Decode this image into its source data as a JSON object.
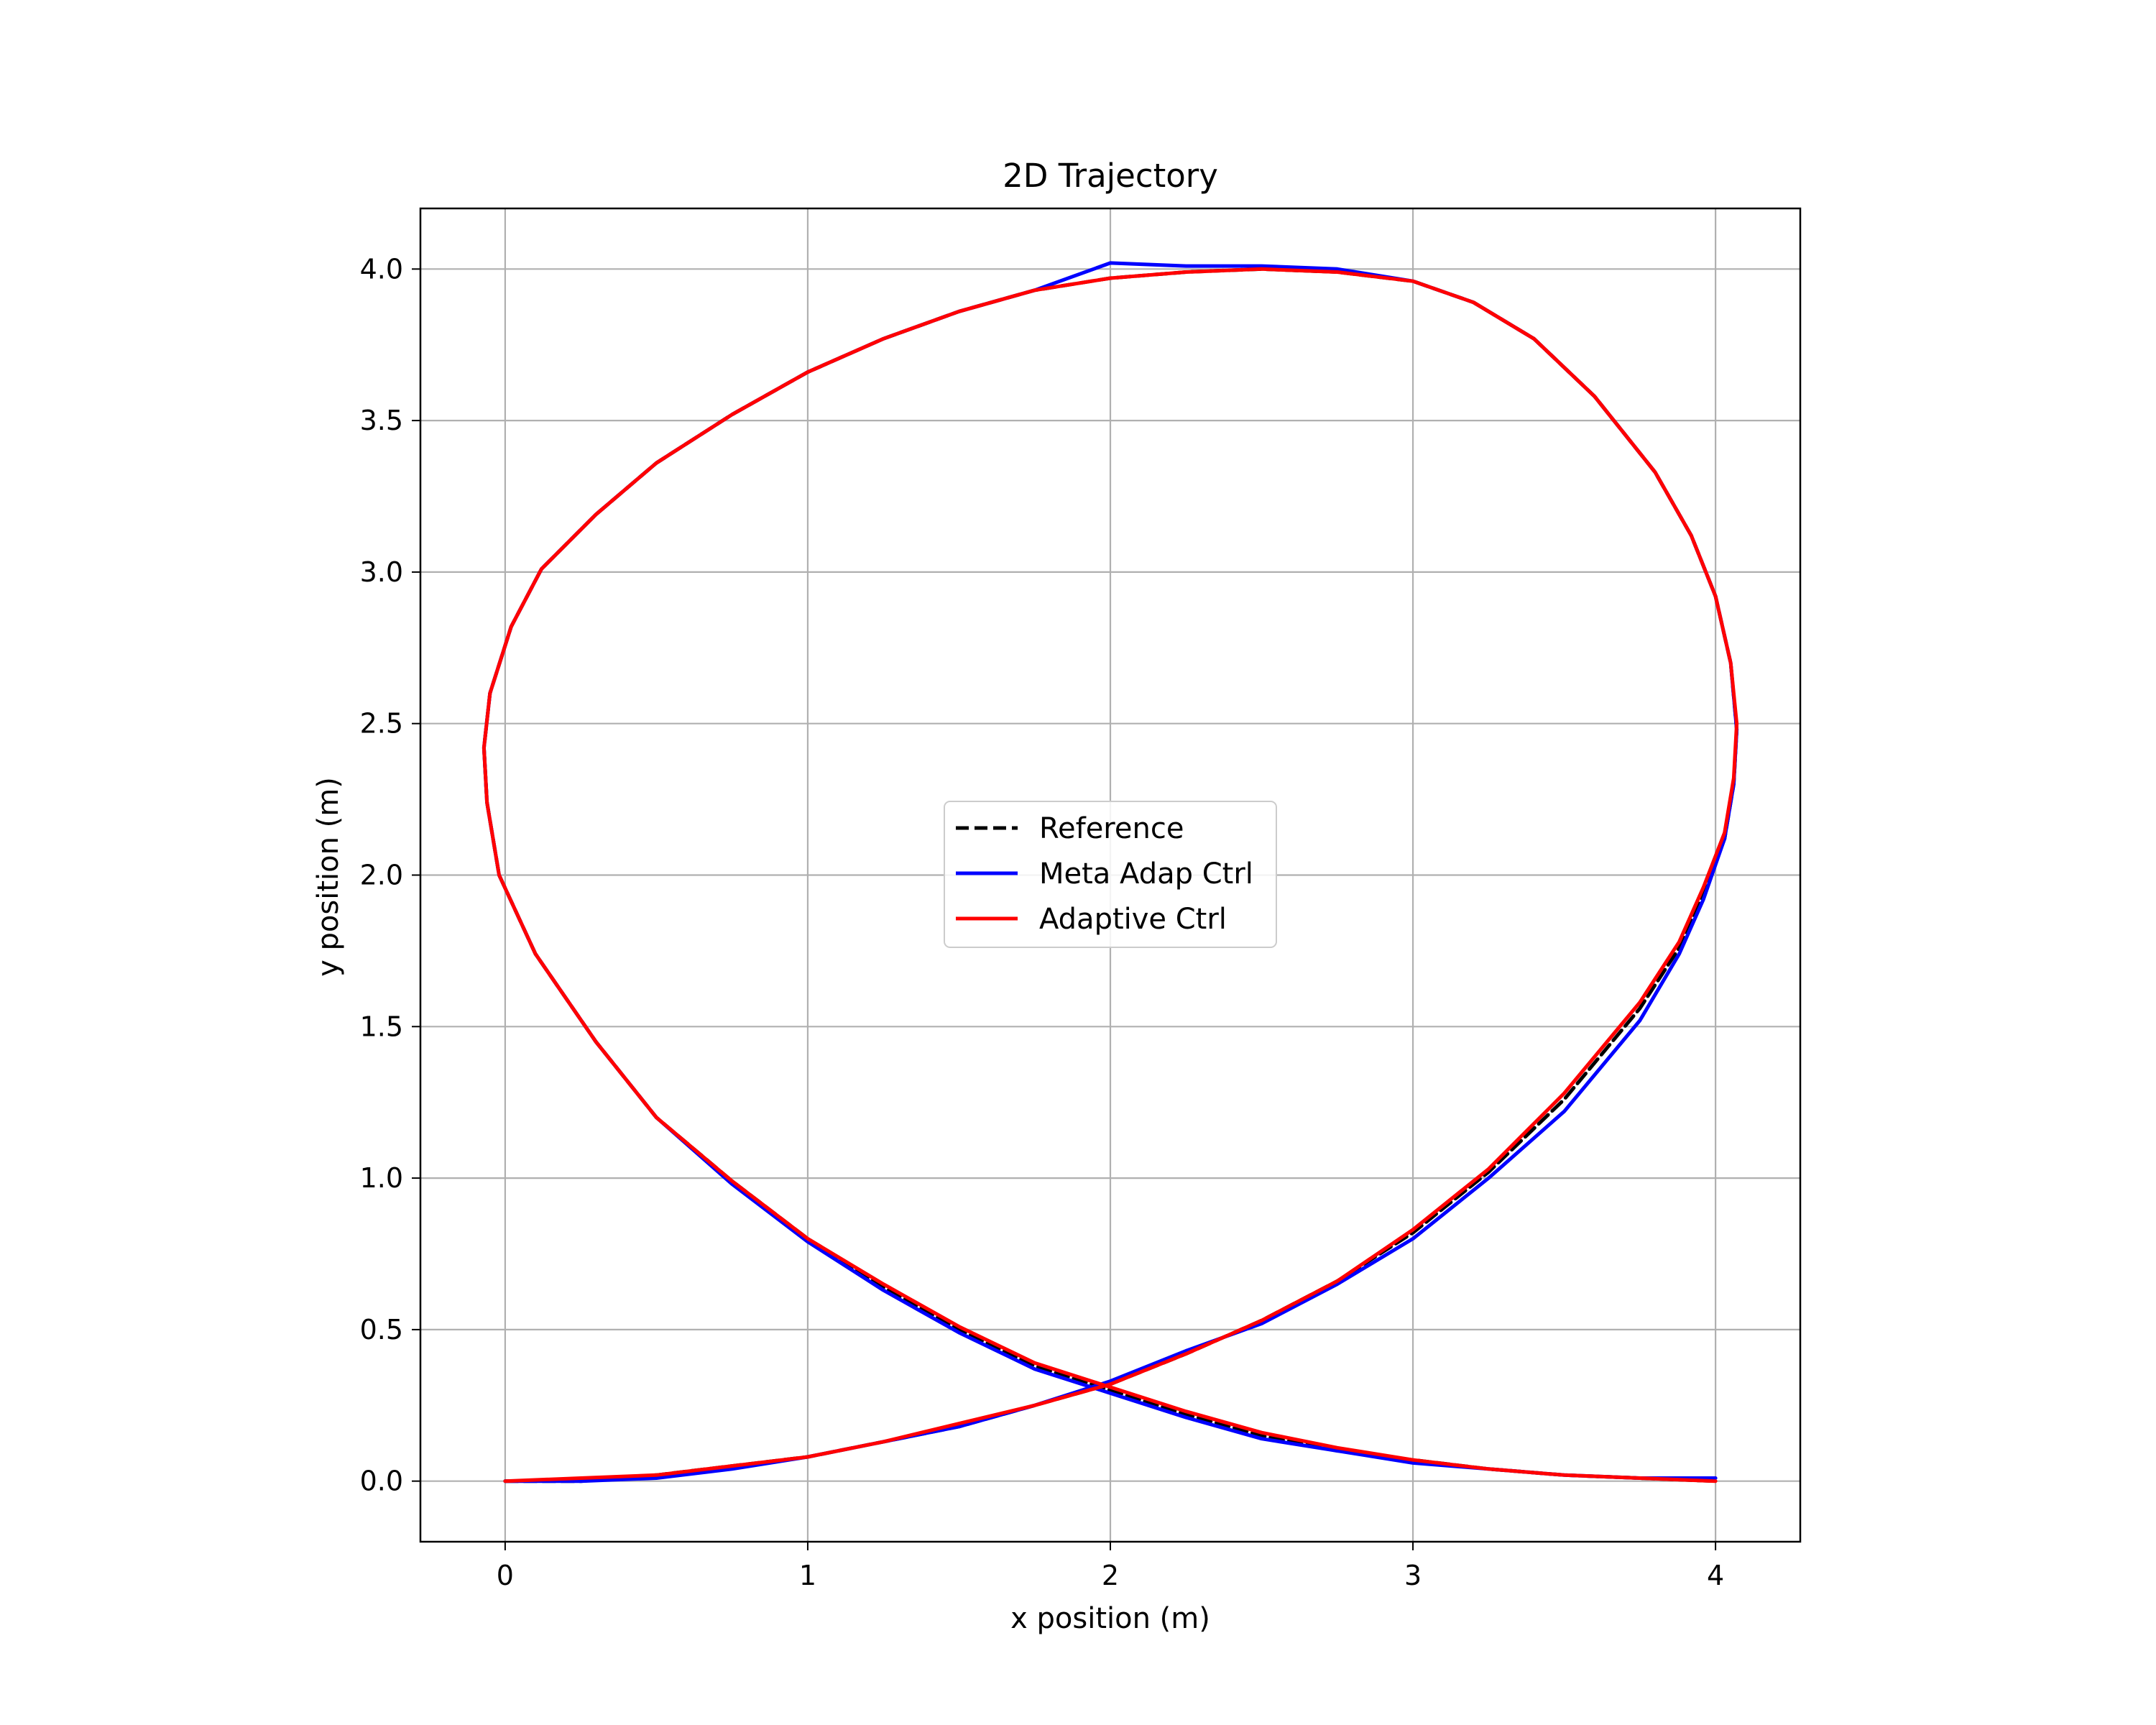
{
  "chart_data": {
    "type": "line",
    "title": "2D Trajectory",
    "xlabel": "x position (m)",
    "ylabel": "y position (m)",
    "xlim": [
      -0.28,
      4.28
    ],
    "ylim": [
      -0.2,
      4.2
    ],
    "xticks": [
      0,
      1,
      2,
      3,
      4
    ],
    "xtick_labels": [
      "0",
      "1",
      "2",
      "3",
      "4"
    ],
    "yticks": [
      0.0,
      0.5,
      1.0,
      1.5,
      2.0,
      2.5,
      3.0,
      3.5,
      4.0
    ],
    "ytick_labels": [
      "0.0",
      "0.5",
      "1.0",
      "1.5",
      "2.0",
      "2.5",
      "3.0",
      "3.5",
      "4.0"
    ],
    "grid": true,
    "legend_position": "center",
    "series": [
      {
        "name": "Reference",
        "color": "#000000",
        "style": "dashed",
        "x": [
          0.0,
          0.25,
          0.5,
          0.75,
          1.0,
          1.25,
          1.5,
          1.75,
          2.0,
          2.25,
          2.5,
          2.75,
          3.0,
          3.25,
          3.5,
          3.75,
          3.88,
          3.96,
          4.03,
          4.06,
          4.07,
          4.05,
          4.0,
          3.92,
          3.8,
          3.6,
          3.4,
          3.2,
          3.0,
          2.75,
          2.5,
          2.25,
          2.0,
          1.75,
          1.5,
          1.25,
          1.0,
          0.75,
          0.5,
          0.3,
          0.12,
          0.02,
          -0.05,
          -0.07,
          -0.06,
          -0.02,
          0.1,
          0.3,
          0.5,
          0.75,
          1.0,
          1.25,
          1.5,
          1.75,
          2.0,
          2.25,
          2.5,
          2.75,
          3.0,
          3.25,
          3.5,
          3.75,
          4.0
        ],
        "y": [
          0.0,
          0.0,
          0.02,
          0.05,
          0.08,
          0.13,
          0.18,
          0.25,
          0.32,
          0.42,
          0.53,
          0.66,
          0.82,
          1.02,
          1.26,
          1.56,
          1.76,
          1.94,
          2.12,
          2.3,
          2.48,
          2.7,
          2.92,
          3.12,
          3.33,
          3.58,
          3.77,
          3.89,
          3.96,
          3.99,
          4.0,
          3.99,
          3.97,
          3.93,
          3.86,
          3.77,
          3.66,
          3.52,
          3.36,
          3.19,
          3.01,
          2.82,
          2.6,
          2.42,
          2.24,
          2.0,
          1.74,
          1.45,
          1.2,
          0.99,
          0.8,
          0.64,
          0.5,
          0.38,
          0.3,
          0.22,
          0.15,
          0.1,
          0.07,
          0.04,
          0.02,
          0.01,
          0.0
        ]
      },
      {
        "name": "Meta Adap Ctrl",
        "color": "#0000ff",
        "style": "solid",
        "x": [
          0.0,
          0.25,
          0.5,
          0.75,
          1.0,
          1.25,
          1.5,
          1.75,
          2.0,
          2.25,
          2.5,
          2.75,
          3.0,
          3.25,
          3.5,
          3.75,
          3.88,
          3.96,
          4.03,
          4.06,
          4.07,
          4.05,
          4.0,
          3.92,
          3.8,
          3.6,
          3.4,
          3.2,
          3.0,
          2.75,
          2.5,
          2.25,
          2.0,
          1.75,
          1.5,
          1.25,
          1.0,
          0.75,
          0.5,
          0.3,
          0.12,
          0.02,
          -0.05,
          -0.07,
          -0.06,
          -0.02,
          0.1,
          0.3,
          0.5,
          0.75,
          1.0,
          1.25,
          1.5,
          1.75,
          2.0,
          2.25,
          2.5,
          2.75,
          3.0,
          3.25,
          3.5,
          3.75,
          4.0
        ],
        "y": [
          0.0,
          0.0,
          0.01,
          0.04,
          0.08,
          0.13,
          0.18,
          0.25,
          0.33,
          0.43,
          0.52,
          0.65,
          0.8,
          1.0,
          1.22,
          1.52,
          1.74,
          1.92,
          2.12,
          2.3,
          2.48,
          2.7,
          2.92,
          3.12,
          3.33,
          3.58,
          3.77,
          3.89,
          3.96,
          4.0,
          4.01,
          4.01,
          4.02,
          3.93,
          3.86,
          3.77,
          3.66,
          3.52,
          3.36,
          3.19,
          3.01,
          2.82,
          2.6,
          2.42,
          2.24,
          2.0,
          1.74,
          1.45,
          1.2,
          0.98,
          0.79,
          0.63,
          0.49,
          0.37,
          0.29,
          0.21,
          0.14,
          0.1,
          0.06,
          0.04,
          0.02,
          0.01,
          0.01
        ]
      },
      {
        "name": "Adaptive Ctrl",
        "color": "#ff0000",
        "style": "solid",
        "x": [
          0.0,
          0.25,
          0.5,
          0.75,
          1.0,
          1.25,
          1.5,
          1.75,
          2.0,
          2.25,
          2.5,
          2.75,
          3.0,
          3.25,
          3.5,
          3.75,
          3.88,
          3.96,
          4.03,
          4.06,
          4.07,
          4.05,
          4.0,
          3.92,
          3.8,
          3.6,
          3.4,
          3.2,
          3.0,
          2.75,
          2.5,
          2.25,
          2.0,
          1.75,
          1.5,
          1.25,
          1.0,
          0.75,
          0.5,
          0.3,
          0.12,
          0.02,
          -0.05,
          -0.07,
          -0.06,
          -0.02,
          0.1,
          0.3,
          0.5,
          0.75,
          1.0,
          1.25,
          1.5,
          1.75,
          2.0,
          2.25,
          2.5,
          2.75,
          3.0,
          3.25,
          3.5,
          3.75,
          4.0
        ],
        "y": [
          0.0,
          0.01,
          0.02,
          0.05,
          0.08,
          0.13,
          0.19,
          0.25,
          0.32,
          0.42,
          0.53,
          0.66,
          0.83,
          1.03,
          1.28,
          1.58,
          1.78,
          1.96,
          2.14,
          2.32,
          2.5,
          2.7,
          2.92,
          3.12,
          3.33,
          3.58,
          3.77,
          3.89,
          3.96,
          3.99,
          4.0,
          3.99,
          3.97,
          3.93,
          3.86,
          3.77,
          3.66,
          3.52,
          3.36,
          3.19,
          3.01,
          2.82,
          2.6,
          2.42,
          2.24,
          2.0,
          1.74,
          1.45,
          1.2,
          0.99,
          0.8,
          0.65,
          0.51,
          0.39,
          0.31,
          0.23,
          0.16,
          0.11,
          0.07,
          0.04,
          0.02,
          0.01,
          0.0
        ]
      }
    ]
  }
}
